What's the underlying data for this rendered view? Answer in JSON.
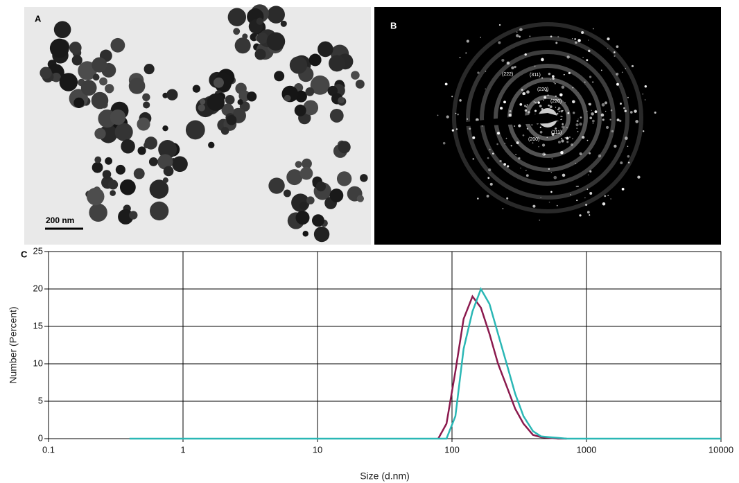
{
  "panels": {
    "a": {
      "label": "A",
      "scale_bar": "200 nm"
    },
    "b": {
      "label": "B",
      "ring_labels": [
        "(222)",
        "(311)",
        "(220)",
        "(220)",
        "(111)",
        "(200)"
      ]
    }
  },
  "chart_data": {
    "type": "line",
    "panel_label": "C",
    "x_label": "Size (d.nm)",
    "y_label": "Number (Percent)",
    "x": [
      0.4,
      1,
      10,
      79,
      91,
      106,
      122,
      142,
      164,
      190,
      220,
      255,
      295,
      340,
      400,
      460,
      530,
      615,
      712,
      1000,
      10000
    ],
    "series": [
      {
        "color": "#8b1a4e",
        "values": [
          null,
          null,
          null,
          0,
          2,
          9,
          16,
          19,
          17.5,
          14,
          10,
          7,
          4,
          2,
          0.5,
          0.2,
          0.1,
          0,
          0,
          null,
          null
        ]
      },
      {
        "color": "#2ab7b5",
        "values": [
          0,
          0,
          0,
          0,
          0,
          3,
          12,
          17,
          20,
          18,
          14,
          10,
          6,
          3,
          1,
          0.3,
          0.2,
          0.1,
          0,
          0,
          0
        ]
      }
    ],
    "log_x": true,
    "xlim": [
      0.1,
      10000
    ],
    "xticks": [
      0.1,
      1,
      10,
      100,
      1000,
      10000
    ],
    "ylim": [
      0,
      25
    ],
    "yticks": [
      0,
      5,
      10,
      15,
      20,
      25
    ],
    "grid": true
  }
}
